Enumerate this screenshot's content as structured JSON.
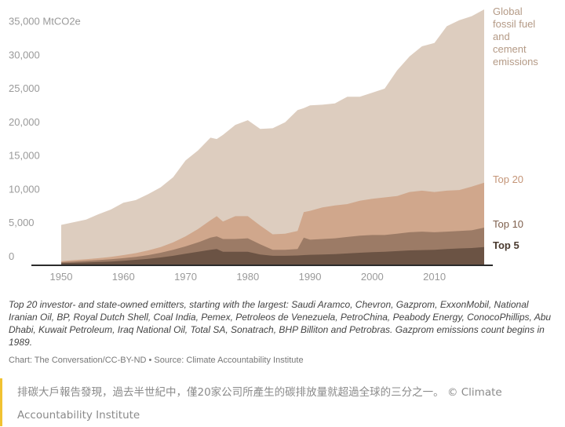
{
  "chart_data": {
    "type": "area",
    "stacked": true,
    "title": "",
    "xlabel": "",
    "ylabel": "",
    "unit_label": "MtCO2e",
    "xlim": [
      1946,
      2018
    ],
    "ylim": [
      0,
      38000
    ],
    "x_ticks": [
      1950,
      1960,
      1970,
      1980,
      1990,
      2000,
      2010
    ],
    "y_ticks": [
      0,
      5000,
      10000,
      15000,
      20000,
      25000,
      30000,
      35000
    ],
    "y_tick_labels": [
      "0",
      "5,000",
      "10,000",
      "15,000",
      "20,000",
      "25,000",
      "30,000",
      "35,000 MtCO2e"
    ],
    "grid": false,
    "legend": "direct labels at right end",
    "x": [
      1950,
      1952,
      1954,
      1956,
      1958,
      1960,
      1962,
      1964,
      1966,
      1968,
      1970,
      1972,
      1974,
      1975,
      1976,
      1978,
      1980,
      1982,
      1984,
      1986,
      1988,
      1989,
      1990,
      1992,
      1994,
      1996,
      1998,
      2000,
      2002,
      2004,
      2006,
      2008,
      2010,
      2012,
      2014,
      2016,
      2018
    ],
    "series": [
      {
        "name": "Top 5",
        "color": "#6b5344",
        "values": [
          200,
          250,
          300,
          380,
          450,
          550,
          700,
          850,
          1050,
          1300,
          1600,
          1900,
          2200,
          2300,
          1900,
          1900,
          1900,
          1500,
          1300,
          1300,
          1350,
          1400,
          1450,
          1500,
          1550,
          1650,
          1750,
          1850,
          1900,
          2000,
          2100,
          2150,
          2200,
          2300,
          2400,
          2450,
          2600
        ]
      },
      {
        "name": "Top 10",
        "color": "#9c7b66",
        "values": [
          350,
          450,
          550,
          650,
          800,
          950,
          1150,
          1400,
          1750,
          2200,
          2700,
          3300,
          4000,
          4200,
          3800,
          3800,
          3900,
          3000,
          2200,
          2200,
          2300,
          4000,
          3700,
          3800,
          3900,
          4100,
          4300,
          4400,
          4400,
          4600,
          4800,
          4900,
          4800,
          4900,
          5000,
          5100,
          5500
        ]
      },
      {
        "name": "Top 20",
        "color": "#d0a78c",
        "values": [
          500,
          650,
          800,
          950,
          1150,
          1400,
          1700,
          2100,
          2600,
          3300,
          4200,
          5300,
          6600,
          7200,
          6400,
          7200,
          7200,
          5800,
          4500,
          4600,
          5000,
          7800,
          8000,
          8500,
          8800,
          9000,
          9500,
          9800,
          10000,
          10200,
          10800,
          11000,
          10800,
          11000,
          11100,
          11600,
          12200
        ]
      },
      {
        "name": "Global fossil fuel and cement emissions",
        "color": "#ddcdbf",
        "values": [
          5900,
          6300,
          6700,
          7500,
          8200,
          9200,
          9600,
          10500,
          11500,
          13000,
          15500,
          17000,
          18900,
          18700,
          19300,
          20800,
          21500,
          20200,
          20300,
          21200,
          23000,
          23300,
          23700,
          23800,
          24000,
          25000,
          25000,
          25600,
          26200,
          28900,
          31000,
          32500,
          33000,
          35500,
          36400,
          37000,
          38000
        ]
      }
    ],
    "labels": {
      "global": [
        "Global",
        "fossil fuel",
        "and",
        "cement",
        "emissions"
      ],
      "top20": "Top 20",
      "top10": "Top 10",
      "top5": "Top 5"
    }
  },
  "note": "Top 20 investor- and state-owned emitters, starting with the largest: Saudi Aramco, Chevron, Gazprom, ExxonMobil, National Iranian Oil, BP, Royal Dutch Shell, Coal India, Pemex, Petroleos de Venezuela, PetroChina, Peabody Energy, ConocoPhillips, Abu Dhabi, Kuwait Petroleum, Iraq National Oil, Total SA, Sonatrach, BHP Billiton and Petrobras. Gazprom emissions count begins in 1989.",
  "credit": "Chart: The Conversation/CC-BY-ND • Source: Climate Accountability Institute",
  "caption": "排碳大戶報告發現，過去半世紀中，僅20家公司所產生的碳排放量就超過全球的三分之一。 © Climate Accountability Institute",
  "colors": {
    "axis": "#2b2b2b",
    "tick_text": "#9a9a9a",
    "accent": "#f1c232"
  }
}
